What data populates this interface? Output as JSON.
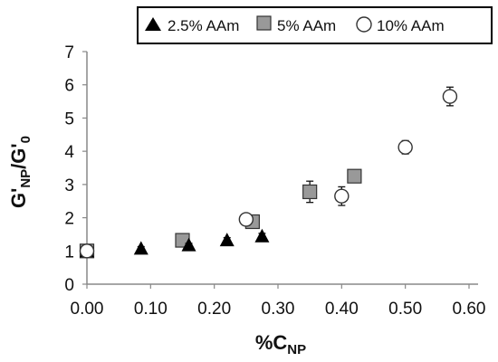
{
  "chart_data": {
    "type": "scatter",
    "xlabel": "%C_NP",
    "ylabel": "G'_NP/G'_0",
    "xlim": [
      0,
      0.6
    ],
    "ylim": [
      0,
      7
    ],
    "xticks": [
      "0.00",
      "0.10",
      "0.20",
      "0.30",
      "0.40",
      "0.50",
      "0.60"
    ],
    "yticks": [
      "0",
      "1",
      "2",
      "3",
      "4",
      "5",
      "6",
      "7"
    ],
    "grid": false,
    "legend_position": "top",
    "series": [
      {
        "name": "2.5% AAm",
        "marker": "triangle",
        "color": "#000000",
        "points": [
          {
            "x": 0.0,
            "y": 1.0,
            "err": 0.05
          },
          {
            "x": 0.085,
            "y": 1.08,
            "err": 0.05
          },
          {
            "x": 0.16,
            "y": 1.18,
            "err": 0.05
          },
          {
            "x": 0.22,
            "y": 1.33,
            "err": 0.07
          },
          {
            "x": 0.275,
            "y": 1.45,
            "err": 0.08
          }
        ]
      },
      {
        "name": "5% AAm",
        "marker": "square",
        "color": "#999999",
        "points": [
          {
            "x": 0.0,
            "y": 1.0,
            "err": 0.05
          },
          {
            "x": 0.15,
            "y": 1.32,
            "err": 0.07
          },
          {
            "x": 0.26,
            "y": 1.88,
            "err": 0.08
          },
          {
            "x": 0.35,
            "y": 2.78,
            "err": 0.32
          },
          {
            "x": 0.42,
            "y": 3.25,
            "err": 0.18
          }
        ]
      },
      {
        "name": "10% AAm",
        "marker": "circle",
        "color": "#ffffff",
        "points": [
          {
            "x": 0.0,
            "y": 1.0,
            "err": 0.05
          },
          {
            "x": 0.25,
            "y": 1.95,
            "err": 0.08
          },
          {
            "x": 0.4,
            "y": 2.65,
            "err": 0.28
          },
          {
            "x": 0.5,
            "y": 4.12,
            "err": 0.2
          },
          {
            "x": 0.57,
            "y": 5.65,
            "err": 0.28
          }
        ]
      }
    ]
  }
}
